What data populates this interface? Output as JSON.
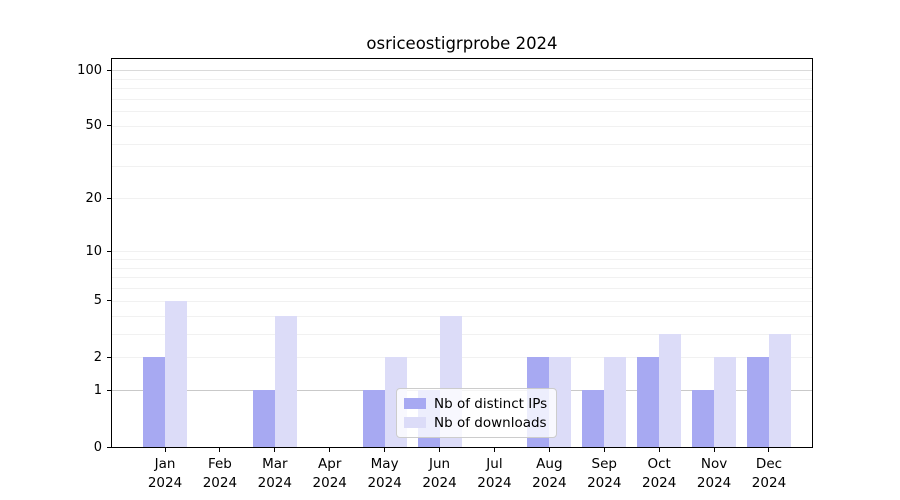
{
  "title": "osriceostigrprobe 2024",
  "chart_data": {
    "type": "bar",
    "title": "osriceostigrprobe 2024",
    "x_axis": {
      "months": [
        "Jan",
        "Feb",
        "Mar",
        "Apr",
        "May",
        "Jun",
        "Jul",
        "Aug",
        "Sep",
        "Oct",
        "Nov",
        "Dec"
      ],
      "year": "2024"
    },
    "y_axis": {
      "ticks": [
        0,
        1,
        2,
        5,
        10,
        20,
        50,
        100
      ],
      "scale": "log1p",
      "ylim": [
        0,
        100
      ],
      "minor_gridlines": [
        1,
        2,
        3,
        4,
        5,
        6,
        7,
        8,
        9,
        10,
        20,
        30,
        40,
        50,
        60,
        70,
        80,
        90,
        100
      ]
    },
    "series": [
      {
        "name": "Nb of distinct IPs",
        "key": "distinct-ips",
        "color": "#a7a9f2",
        "values": [
          2,
          0,
          1,
          0,
          1,
          1,
          0,
          2,
          1,
          2,
          1,
          2
        ]
      },
      {
        "name": "Nb of downloads",
        "key": "downloads",
        "color": "#dcdcf8",
        "values": [
          5,
          0,
          4,
          0,
          2,
          4,
          0,
          2,
          2,
          3,
          2,
          3
        ]
      }
    ],
    "grid": true,
    "legend_position": "lower center"
  },
  "colors": {
    "grid_minor": "#f1f1f1",
    "grid_level1": "#c9c9c9",
    "grid_level100": "#dadada",
    "axis": "#000000",
    "legend_border": "#cccccc",
    "background": "#ffffff"
  }
}
